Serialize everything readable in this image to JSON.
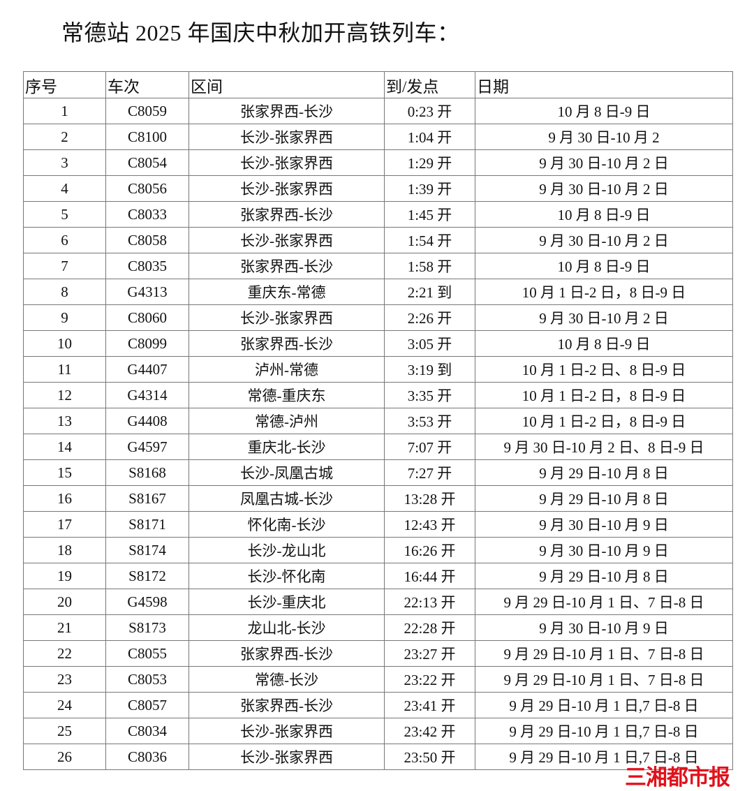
{
  "title": "常德站 2025 年国庆中秋加开高铁列车：",
  "table": {
    "headers": [
      "序号",
      "车次",
      "区间",
      "到/发点",
      "日期"
    ],
    "rows": [
      [
        "1",
        "C8059",
        "张家界西-长沙",
        "0:23 开",
        "10 月 8 日-9 日"
      ],
      [
        "2",
        "C8100",
        "长沙-张家界西",
        "1:04 开",
        "9 月 30 日-10 月 2"
      ],
      [
        "3",
        "C8054",
        "长沙-张家界西",
        "1:29  开",
        "9 月 30 日-10 月 2 日"
      ],
      [
        "4",
        "C8056",
        "长沙-张家界西",
        "1:39 开",
        "9 月 30 日-10 月 2 日"
      ],
      [
        "5",
        "C8033",
        "张家界西-长沙",
        "1:45 开",
        "10 月 8 日-9 日"
      ],
      [
        "6",
        "C8058",
        "长沙-张家界西",
        "1:54 开",
        "9 月 30 日-10 月 2 日"
      ],
      [
        "7",
        "C8035",
        "张家界西-长沙",
        "1:58 开",
        "10 月 8 日-9 日"
      ],
      [
        "8",
        "G4313",
        "重庆东-常德",
        "2:21 到",
        "10  月 1 日-2 日，8 日-9 日"
      ],
      [
        "9",
        "C8060",
        "长沙-张家界西",
        "2:26 开",
        "9 月 30 日-10 月 2 日"
      ],
      [
        "10",
        "C8099",
        "张家界西-长沙",
        "3:05 开",
        "10 月 8 日-9 日"
      ],
      [
        "11",
        "G4407",
        "泸州-常德",
        "3:19 到",
        "10 月 1 日-2 日、8 日-9 日"
      ],
      [
        "12",
        "G4314",
        "常德-重庆东",
        "3:35  开",
        "10 月 1 日-2 日，8 日-9 日"
      ],
      [
        "13",
        "G4408",
        "常德-泸州",
        "3:53 开",
        "10 月 1 日-2 日，8 日-9 日"
      ],
      [
        "14",
        "G4597",
        "重庆北-长沙",
        "7:07 开",
        "9 月 30 日-10 月 2 日、8 日-9 日"
      ],
      [
        "15",
        "S8168",
        "长沙-凤凰古城",
        "7:27 开",
        "9 月 29 日-10 月 8 日"
      ],
      [
        "16",
        "S8167",
        "凤凰古城-长沙",
        "13:28  开",
        "9 月 29 日-10 月 8 日"
      ],
      [
        "17",
        "S8171",
        "怀化南-长沙",
        "12:43 开",
        "9 月 30 日-10 月 9 日"
      ],
      [
        "18",
        "S8174",
        "长沙-龙山北",
        "16:26 开",
        "9 月 30 日-10 月 9 日"
      ],
      [
        "19",
        "S8172",
        "长沙-怀化南",
        "16:44 开",
        "9 月 29 日-10 月 8 日"
      ],
      [
        "20",
        "G4598",
        "长沙-重庆北",
        "22:13 开",
        "9 月 29 日-10 月 1 日、7 日-8 日"
      ],
      [
        "21",
        "S8173",
        "龙山北-长沙",
        "22:28 开",
        "9 月 30 日-10 月 9 日"
      ],
      [
        "22",
        "C8055",
        "张家界西-长沙",
        "23:27 开",
        "9 月 29 日-10 月 1 日、7 日-8 日"
      ],
      [
        "23",
        "C8053",
        "常德-长沙",
        "23:22 开",
        "9 月 29 日-10 月 1 日、7 日-8 日"
      ],
      [
        "24",
        "C8057",
        "张家界西-长沙",
        "23:41 开",
        "9 月 29 日-10 月 1 日,7 日-8 日"
      ],
      [
        "25",
        "C8034",
        "长沙-张家界西",
        "23:42 开",
        "9 月 29 日-10 月 1 日,7 日-8 日"
      ],
      [
        "26",
        "C8036",
        "长沙-张家界西",
        "23:50 开",
        "9 月 29 日-10 月 1 日,7 日-8 日"
      ]
    ]
  },
  "watermark": "三湘都市报",
  "colors": {
    "watermark": "#e0121b",
    "border": "#777777"
  }
}
